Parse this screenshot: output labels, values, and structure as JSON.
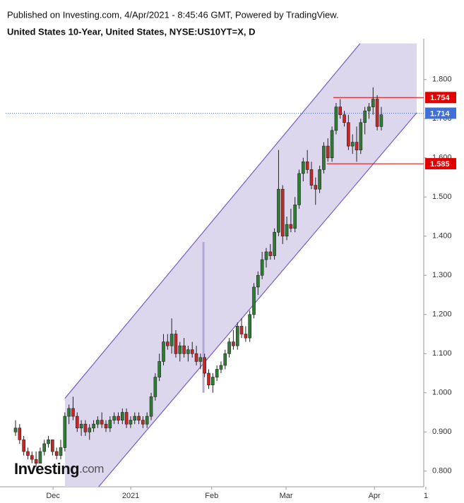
{
  "chart_data": {
    "type": "candlestick",
    "header": "Published on Investing.com, 4/Apr/2021 - 8:45:46 GMT, Powered by TradingView.",
    "title": "United States 10-Year, United States, NYSE:US10YT=X, D",
    "logo": {
      "name": "Investing",
      "suffix": ".com"
    },
    "up_color": "#2e7d32",
    "down_color": "#c62828",
    "candles": [
      [
        0.9,
        0.93,
        0.89,
        0.91
      ],
      [
        0.91,
        0.92,
        0.87,
        0.88
      ],
      [
        0.88,
        0.89,
        0.84,
        0.85
      ],
      [
        0.85,
        0.86,
        0.83,
        0.84
      ],
      [
        0.84,
        0.85,
        0.82,
        0.83
      ],
      [
        0.83,
        0.85,
        0.81,
        0.82
      ],
      [
        0.82,
        0.86,
        0.82,
        0.85
      ],
      [
        0.85,
        0.88,
        0.84,
        0.87
      ],
      [
        0.87,
        0.89,
        0.86,
        0.88
      ],
      [
        0.88,
        0.88,
        0.84,
        0.85
      ],
      [
        0.85,
        0.86,
        0.83,
        0.84
      ],
      [
        0.84,
        0.88,
        0.83,
        0.86
      ],
      [
        0.86,
        0.95,
        0.85,
        0.94
      ],
      [
        0.94,
        0.97,
        0.92,
        0.96
      ],
      [
        0.96,
        0.99,
        0.93,
        0.94
      ],
      [
        0.94,
        0.95,
        0.9,
        0.91
      ],
      [
        0.91,
        0.93,
        0.89,
        0.92
      ],
      [
        0.92,
        0.93,
        0.89,
        0.9
      ],
      [
        0.9,
        0.92,
        0.88,
        0.91
      ],
      [
        0.91,
        0.93,
        0.9,
        0.92
      ],
      [
        0.92,
        0.94,
        0.91,
        0.93
      ],
      [
        0.93,
        0.95,
        0.91,
        0.92
      ],
      [
        0.92,
        0.93,
        0.9,
        0.91
      ],
      [
        0.91,
        0.94,
        0.9,
        0.93
      ],
      [
        0.93,
        0.95,
        0.92,
        0.94
      ],
      [
        0.94,
        0.95,
        0.92,
        0.93
      ],
      [
        0.93,
        0.96,
        0.92,
        0.95
      ],
      [
        0.95,
        0.96,
        0.91,
        0.92
      ],
      [
        0.92,
        0.94,
        0.91,
        0.93
      ],
      [
        0.93,
        0.95,
        0.92,
        0.94
      ],
      [
        0.94,
        0.95,
        0.92,
        0.93
      ],
      [
        0.93,
        0.94,
        0.91,
        0.92
      ],
      [
        0.92,
        0.95,
        0.91,
        0.94
      ],
      [
        0.94,
        1.0,
        0.93,
        0.99
      ],
      [
        0.99,
        1.05,
        0.98,
        1.04
      ],
      [
        1.04,
        1.1,
        1.03,
        1.08
      ],
      [
        1.08,
        1.15,
        1.07,
        1.13
      ],
      [
        1.13,
        1.15,
        1.11,
        1.12
      ],
      [
        1.12,
        1.19,
        1.1,
        1.15
      ],
      [
        1.15,
        1.16,
        1.09,
        1.1
      ],
      [
        1.1,
        1.13,
        1.08,
        1.12
      ],
      [
        1.12,
        1.14,
        1.09,
        1.1
      ],
      [
        1.1,
        1.12,
        1.08,
        1.11
      ],
      [
        1.11,
        1.13,
        1.09,
        1.1
      ],
      [
        1.1,
        1.12,
        1.07,
        1.08
      ],
      [
        1.08,
        1.1,
        1.06,
        1.09
      ],
      [
        1.09,
        1.1,
        1.04,
        1.05
      ],
      [
        1.05,
        1.06,
        1.01,
        1.02
      ],
      [
        1.02,
        1.05,
        1.0,
        1.04
      ],
      [
        1.04,
        1.07,
        1.03,
        1.06
      ],
      [
        1.06,
        1.08,
        1.05,
        1.07
      ],
      [
        1.07,
        1.11,
        1.06,
        1.1
      ],
      [
        1.1,
        1.14,
        1.09,
        1.13
      ],
      [
        1.13,
        1.16,
        1.11,
        1.12
      ],
      [
        1.12,
        1.18,
        1.11,
        1.17
      ],
      [
        1.17,
        1.19,
        1.14,
        1.15
      ],
      [
        1.15,
        1.17,
        1.13,
        1.14
      ],
      [
        1.14,
        1.21,
        1.13,
        1.2
      ],
      [
        1.2,
        1.28,
        1.19,
        1.27
      ],
      [
        1.27,
        1.31,
        1.25,
        1.3
      ],
      [
        1.3,
        1.36,
        1.29,
        1.34
      ],
      [
        1.34,
        1.37,
        1.32,
        1.36
      ],
      [
        1.36,
        1.38,
        1.34,
        1.35
      ],
      [
        1.35,
        1.42,
        1.34,
        1.41
      ],
      [
        1.41,
        1.62,
        1.4,
        1.52
      ],
      [
        1.52,
        1.53,
        1.38,
        1.4
      ],
      [
        1.4,
        1.45,
        1.39,
        1.43
      ],
      [
        1.43,
        1.47,
        1.41,
        1.42
      ],
      [
        1.42,
        1.5,
        1.41,
        1.48
      ],
      [
        1.48,
        1.57,
        1.47,
        1.56
      ],
      [
        1.56,
        1.6,
        1.54,
        1.59
      ],
      [
        1.59,
        1.62,
        1.56,
        1.57
      ],
      [
        1.57,
        1.59,
        1.52,
        1.53
      ],
      [
        1.53,
        1.55,
        1.48,
        1.52
      ],
      [
        1.52,
        1.58,
        1.51,
        1.57
      ],
      [
        1.57,
        1.64,
        1.56,
        1.63
      ],
      [
        1.63,
        1.65,
        1.59,
        1.6
      ],
      [
        1.6,
        1.68,
        1.59,
        1.67
      ],
      [
        1.67,
        1.74,
        1.66,
        1.73
      ],
      [
        1.73,
        1.75,
        1.7,
        1.71
      ],
      [
        1.71,
        1.72,
        1.68,
        1.69
      ],
      [
        1.69,
        1.71,
        1.62,
        1.63
      ],
      [
        1.63,
        1.66,
        1.61,
        1.64
      ],
      [
        1.64,
        1.68,
        1.59,
        1.62
      ],
      [
        1.62,
        1.7,
        1.61,
        1.69
      ],
      [
        1.69,
        1.73,
        1.66,
        1.72
      ],
      [
        1.72,
        1.74,
        1.7,
        1.73
      ],
      [
        1.73,
        1.78,
        1.71,
        1.75
      ],
      [
        1.75,
        1.76,
        1.67,
        1.68
      ],
      [
        1.68,
        1.73,
        1.67,
        1.71
      ]
    ],
    "xlim": [
      -1.03,
      100.7
    ],
    "xticks": [
      {
        "value": 10.5,
        "label": "Dec"
      },
      {
        "value": 29.4,
        "label": "2021"
      },
      {
        "value": 49.1,
        "label": "Feb"
      },
      {
        "value": 67.2,
        "label": "Mar"
      },
      {
        "value": 88.7,
        "label": "Apr"
      },
      {
        "value": 101.2,
        "label": "1"
      }
    ],
    "ylim": [
      0.76,
      1.895
    ],
    "yticks": [
      {
        "value": 0.8,
        "label": "0.800"
      },
      {
        "value": 0.9,
        "label": "0.900"
      },
      {
        "value": 1.0,
        "label": "1.000"
      },
      {
        "value": 1.1,
        "label": "1.100"
      },
      {
        "value": 1.2,
        "label": "1.200"
      },
      {
        "value": 1.3,
        "label": "1.300"
      },
      {
        "value": 1.4,
        "label": "1.400"
      },
      {
        "value": 1.5,
        "label": "1.500"
      },
      {
        "value": 1.6,
        "label": "1.600"
      },
      {
        "value": 1.7,
        "label": "1.700"
      },
      {
        "value": 1.8,
        "label": "1.800"
      }
    ],
    "channel": {
      "color": "#7b5cc4",
      "fill": "#d9d3ec",
      "shade": [
        [
          13.4,
          0.986
        ],
        [
          85.2,
          1.892
        ],
        [
          99.0,
          1.892
        ],
        [
          99.0,
          1.715
        ],
        [
          21.6,
          0.76
        ],
        [
          13.4,
          0.76
        ]
      ],
      "upper": [
        [
          13.4,
          0.986
        ],
        [
          85.2,
          1.892
        ]
      ],
      "lower": [
        [
          21.6,
          0.76
        ],
        [
          99.0,
          1.715
        ]
      ],
      "marker": [
        [
          47.1,
          1.385
        ],
        [
          47.1,
          1.0
        ]
      ]
    },
    "price_lines": [
      {
        "value": 1.754,
        "start": 78.7,
        "color": "#e00000",
        "style": "solid"
      },
      {
        "value": 1.714,
        "start": -1.03,
        "color": "#3f6fd8",
        "style": "dotted"
      },
      {
        "value": 1.585,
        "start": 77.1,
        "color": "#e00000",
        "style": "solid"
      }
    ]
  }
}
